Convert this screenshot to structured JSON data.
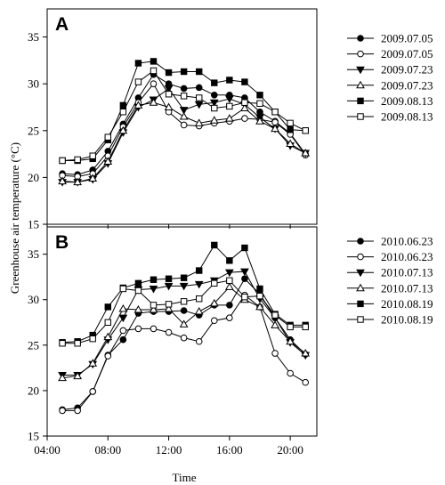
{
  "figure": {
    "ylabel": "Greenhouse air temperature (°C)",
    "xlabel": "Time"
  },
  "chart_data": [
    {
      "type": "line",
      "panel_label": "A",
      "ylim": [
        15,
        38
      ],
      "yticks": [
        15,
        20,
        25,
        30,
        35
      ],
      "xlim": [
        4.0,
        21.75
      ],
      "xticks": [
        4,
        8,
        12,
        16,
        20
      ],
      "xtick_labels": [
        "04:00",
        "08:00",
        "12:00",
        "16:00",
        "20:00"
      ],
      "show_xtick_labels": false,
      "grid": false,
      "legend_position": "right",
      "x": [
        5,
        6,
        7,
        8,
        9,
        10,
        11,
        12,
        13,
        14,
        15,
        16,
        17,
        18,
        19,
        20,
        21
      ],
      "series": [
        {
          "name": "2009.07.05",
          "marker": "filled-circle",
          "values": [
            20.4,
            20.3,
            20.8,
            22.8,
            25.7,
            28.5,
            31.0,
            30.0,
            29.5,
            29.6,
            28.8,
            28.8,
            28.5,
            27.0,
            26.0,
            24.7,
            22.5
          ]
        },
        {
          "name": "2009.07.05",
          "marker": "open-circle",
          "values": [
            20.2,
            20.1,
            20.4,
            22.3,
            25.4,
            28.0,
            30.0,
            27.0,
            25.6,
            25.5,
            25.8,
            26.0,
            26.3,
            26.2,
            25.9,
            24.6,
            22.4
          ]
        },
        {
          "name": "2009.07.23",
          "marker": "filled-triangle-down",
          "values": [
            19.5,
            19.5,
            19.8,
            21.5,
            24.8,
            27.5,
            28.3,
            29.5,
            27.2,
            27.8,
            28.0,
            28.4,
            27.8,
            26.4,
            25.2,
            23.4,
            22.6
          ]
        },
        {
          "name": "2009.07.23",
          "marker": "open-triangle-up",
          "values": [
            19.6,
            19.5,
            19.9,
            21.7,
            25.0,
            27.7,
            28.0,
            27.5,
            26.5,
            25.8,
            26.1,
            26.3,
            27.4,
            26.0,
            25.2,
            23.6,
            22.6
          ]
        },
        {
          "name": "2009.08.13",
          "marker": "filled-square",
          "values": [
            21.8,
            21.8,
            22.0,
            24.0,
            27.7,
            32.2,
            32.4,
            31.2,
            31.3,
            31.3,
            30.1,
            30.4,
            30.2,
            28.8,
            27.0,
            25.1,
            25.0
          ]
        },
        {
          "name": "2009.08.13",
          "marker": "open-square",
          "values": [
            21.8,
            21.9,
            22.3,
            24.3,
            27.0,
            30.2,
            31.4,
            28.9,
            28.7,
            28.5,
            27.4,
            27.6,
            28.0,
            27.9,
            27.0,
            25.8,
            25.0
          ]
        }
      ]
    },
    {
      "type": "line",
      "panel_label": "B",
      "ylim": [
        15,
        38
      ],
      "yticks": [
        15,
        20,
        25,
        30,
        35
      ],
      "xlim": [
        4.0,
        21.75
      ],
      "xticks": [
        4,
        8,
        12,
        16,
        20
      ],
      "xtick_labels": [
        "04:00",
        "08:00",
        "12:00",
        "16:00",
        "20:00"
      ],
      "show_xtick_labels": true,
      "grid": false,
      "legend_position": "right",
      "x": [
        5,
        6,
        7,
        8,
        9,
        10,
        11,
        12,
        13,
        14,
        15,
        16,
        17,
        18,
        19,
        20,
        21
      ],
      "series": [
        {
          "name": "2010.06.23",
          "marker": "filled-circle",
          "values": [
            17.9,
            18.1,
            19.9,
            23.9,
            25.6,
            28.5,
            28.7,
            28.7,
            28.8,
            28.3,
            29.4,
            29.4,
            32.3,
            30.6,
            28.0,
            25.6,
            24.0
          ]
        },
        {
          "name": "2010.06.23",
          "marker": "open-circle",
          "values": [
            17.8,
            17.8,
            19.9,
            23.8,
            26.6,
            26.8,
            26.8,
            26.4,
            25.8,
            25.4,
            27.7,
            28.0,
            30.5,
            29.2,
            24.1,
            21.9,
            20.9
          ]
        },
        {
          "name": "2010.07.13",
          "marker": "filled-triangle-down",
          "values": [
            21.7,
            21.7,
            22.9,
            25.6,
            28.0,
            31.1,
            31.2,
            31.5,
            31.5,
            31.7,
            32.1,
            33.0,
            33.1,
            30.1,
            28.0,
            25.3,
            23.9
          ]
        },
        {
          "name": "2010.07.13",
          "marker": "open-triangle-up",
          "values": [
            21.4,
            21.6,
            23.0,
            25.9,
            29.0,
            28.9,
            28.9,
            29.0,
            27.3,
            28.7,
            29.6,
            31.4,
            30.0,
            29.2,
            27.2,
            25.4,
            24.1
          ]
        },
        {
          "name": "2010.08.19",
          "marker": "filled-square",
          "values": [
            25.3,
            25.4,
            26.1,
            29.2,
            31.3,
            31.8,
            32.2,
            32.3,
            32.4,
            33.2,
            36.0,
            34.3,
            35.7,
            31.2,
            28.4,
            27.2,
            27.2
          ]
        },
        {
          "name": "2010.08.19",
          "marker": "open-square",
          "values": [
            25.2,
            25.2,
            25.7,
            27.5,
            31.2,
            31.0,
            29.4,
            29.5,
            29.8,
            30.1,
            31.8,
            32.1,
            30.3,
            30.4,
            28.3,
            27.0,
            27.0
          ]
        }
      ]
    }
  ]
}
